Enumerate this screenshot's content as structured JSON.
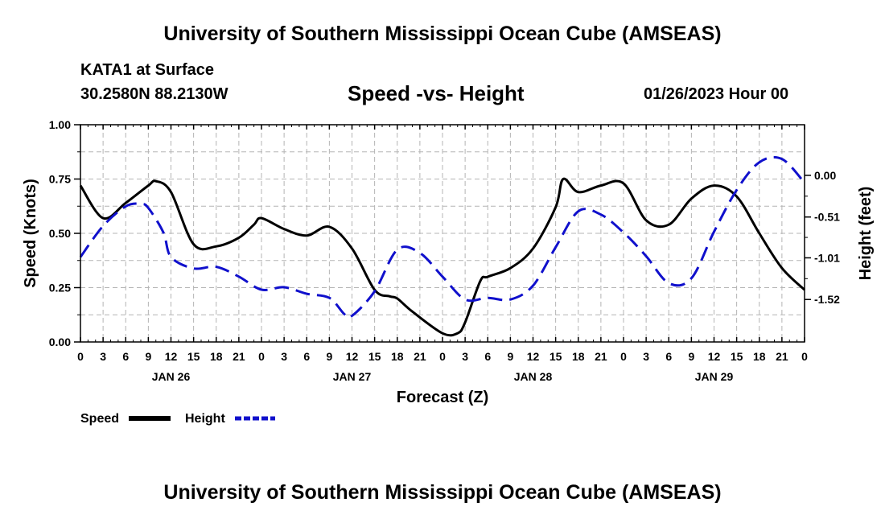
{
  "header": {
    "title": "University of Southern Mississippi Ocean Cube (AMSEAS)",
    "station": "KATA1 at Surface",
    "coords": "30.2580N  88.2130W",
    "date": "01/26/2023 Hour 00"
  },
  "footer": {
    "title": "University of Southern Mississippi Ocean Cube (AMSEAS)"
  },
  "colors": {
    "speed": "#000000",
    "height": "#1010cc",
    "grid": "#b4b4b4"
  },
  "chart_data": {
    "type": "line",
    "title": "Speed -vs- Height",
    "xlabel": "Forecast (Z)",
    "ylabel": "Speed (Knots)",
    "y2label": "Height (feet)",
    "xlim": [
      0,
      96
    ],
    "ylim": [
      0,
      1
    ],
    "y2lim": [
      -2.04,
      0.62
    ],
    "x_ticks": [
      0,
      3,
      6,
      9,
      12,
      15,
      18,
      21,
      24,
      27,
      30,
      33,
      36,
      39,
      42,
      45,
      48,
      51,
      54,
      57,
      60,
      63,
      66,
      69,
      72,
      75,
      78,
      81,
      84,
      87,
      90,
      93,
      96
    ],
    "x_tick_labels": [
      "0",
      "3",
      "6",
      "9",
      "12",
      "15",
      "18",
      "21",
      "0",
      "3",
      "6",
      "9",
      "12",
      "15",
      "18",
      "21",
      "0",
      "3",
      "6",
      "9",
      "12",
      "15",
      "18",
      "21",
      "0",
      "3",
      "6",
      "9",
      "12",
      "15",
      "18",
      "21",
      "0"
    ],
    "day_labels": [
      {
        "label": "JAN 26",
        "x": 12
      },
      {
        "label": "JAN 27",
        "x": 36
      },
      {
        "label": "JAN 28",
        "x": 60
      },
      {
        "label": "JAN 29",
        "x": 84
      }
    ],
    "y_ticks": [
      0.0,
      0.25,
      0.5,
      0.75,
      1.0
    ],
    "y_tick_labels": [
      "0.00",
      "0.25",
      "0.50",
      "0.75",
      "1.00"
    ],
    "y2_ticks": [
      0.0,
      -0.51,
      -1.01,
      -1.52
    ],
    "y2_tick_labels": [
      "0.00",
      "-0.51",
      "-1.01",
      "-1.52"
    ],
    "grid": true,
    "legend": [
      {
        "name": "Speed",
        "style": "solid",
        "color": "#000000"
      },
      {
        "name": "Height",
        "style": "dashed",
        "color": "#1010cc"
      }
    ],
    "series": [
      {
        "name": "Speed",
        "axis": "left",
        "x": [
          0,
          3,
          6,
          9,
          10,
          12,
          15,
          18,
          21,
          23,
          24,
          27,
          30,
          33,
          36,
          39,
          41,
          42,
          44,
          48,
          50,
          51,
          53,
          54,
          57,
          60,
          63,
          64,
          66,
          69,
          72,
          75,
          78,
          81,
          84,
          87,
          90,
          93,
          96
        ],
        "values": [
          0.72,
          0.57,
          0.64,
          0.72,
          0.74,
          0.69,
          0.45,
          0.44,
          0.48,
          0.54,
          0.57,
          0.52,
          0.49,
          0.53,
          0.43,
          0.24,
          0.21,
          0.2,
          0.14,
          0.04,
          0.04,
          0.09,
          0.28,
          0.3,
          0.34,
          0.43,
          0.62,
          0.75,
          0.69,
          0.72,
          0.73,
          0.56,
          0.54,
          0.66,
          0.72,
          0.67,
          0.5,
          0.34,
          0.24
        ]
      },
      {
        "name": "Height",
        "axis": "right",
        "x": [
          0,
          3,
          6,
          8,
          9,
          11,
          12,
          15,
          18,
          21,
          24,
          27,
          30,
          33,
          35,
          36,
          39,
          42,
          45,
          48,
          51,
          54,
          57,
          60,
          63,
          66,
          69,
          72,
          75,
          78,
          81,
          84,
          87,
          90,
          93,
          96
        ],
        "values": [
          -1.0,
          -0.62,
          -0.38,
          -0.35,
          -0.4,
          -0.7,
          -1.0,
          -1.14,
          -1.12,
          -1.24,
          -1.4,
          -1.37,
          -1.45,
          -1.5,
          -1.7,
          -1.72,
          -1.42,
          -0.91,
          -0.95,
          -1.24,
          -1.52,
          -1.5,
          -1.52,
          -1.35,
          -0.88,
          -0.44,
          -0.48,
          -0.7,
          -0.99,
          -1.32,
          -1.26,
          -0.69,
          -0.18,
          0.16,
          0.2,
          -0.09
        ]
      }
    ]
  }
}
